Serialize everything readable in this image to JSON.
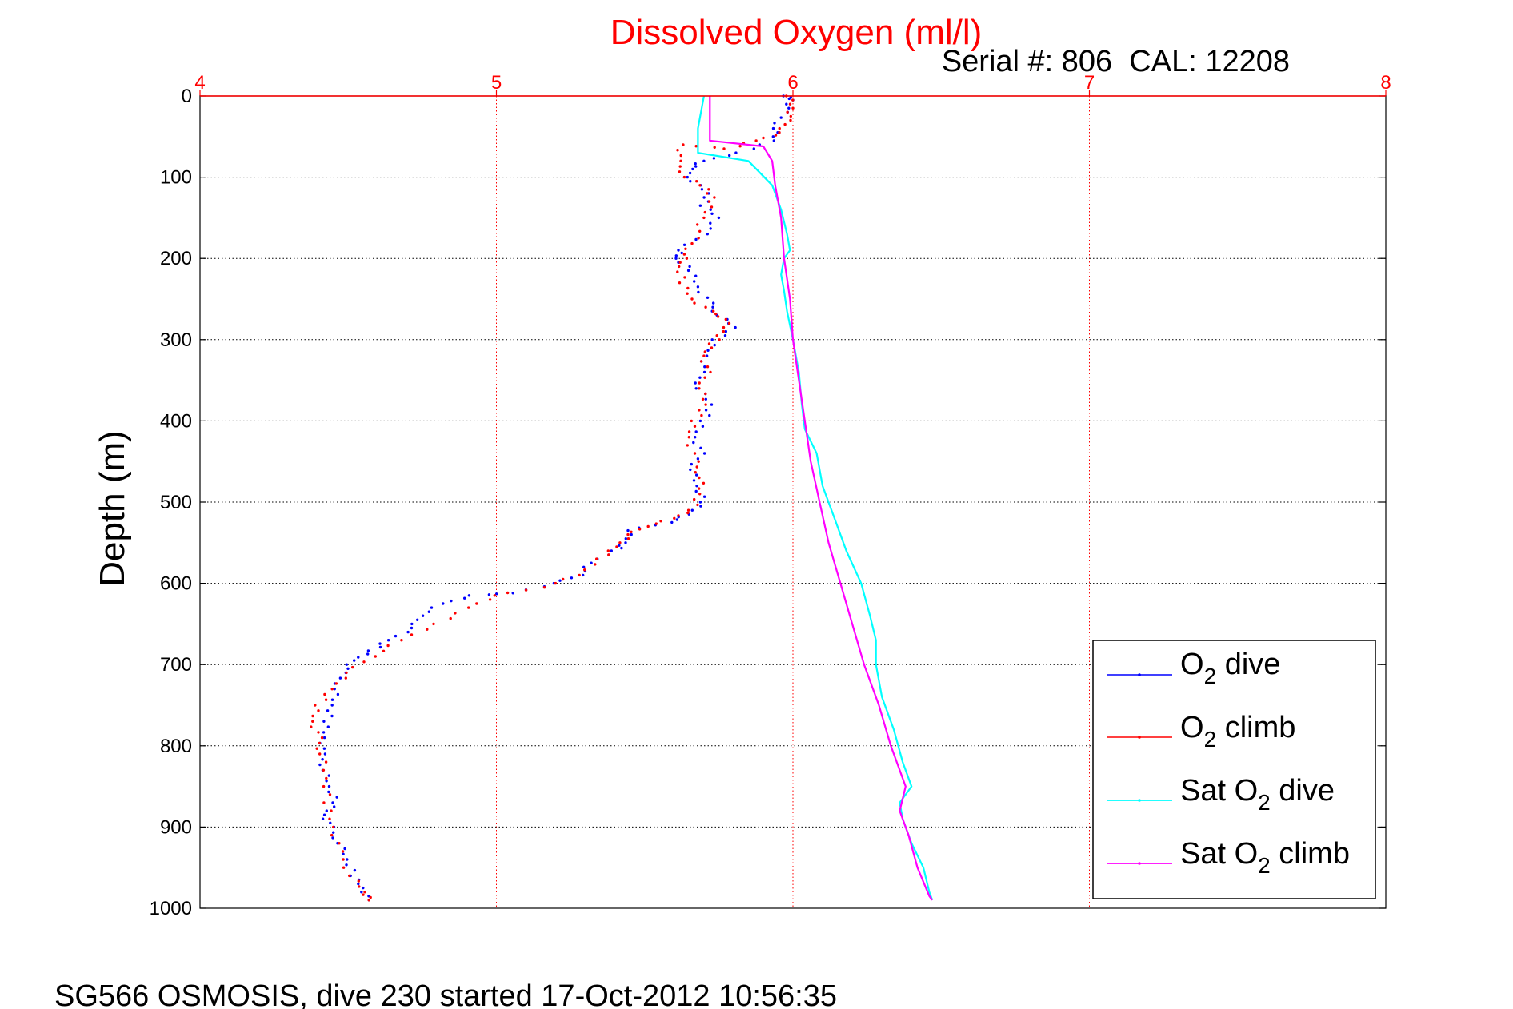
{
  "chart_data": {
    "type": "line",
    "title": "Dissolved Oxygen (ml/l)",
    "subtitle": "Serial #: 806  CAL: 12208",
    "ylabel": "Depth (m)",
    "xlabel": "",
    "xlim": [
      4,
      8
    ],
    "ylim": [
      0,
      1000
    ],
    "y_reversed": true,
    "x_axis_position": "top",
    "grid": true,
    "x_ticks": [
      "4",
      "5",
      "6",
      "7",
      "8"
    ],
    "y_ticks": [
      "0",
      "100",
      "200",
      "300",
      "400",
      "500",
      "600",
      "700",
      "800",
      "900",
      "1000"
    ],
    "legend_position": "bottom-right",
    "series": [
      {
        "name": "O2 dive",
        "style": "dots",
        "color": "#0000ff",
        "points": [
          [
            5.98,
            0
          ],
          [
            6.0,
            5
          ],
          [
            5.97,
            20
          ],
          [
            5.94,
            40
          ],
          [
            5.93,
            55
          ],
          [
            5.82,
            70
          ],
          [
            5.7,
            80
          ],
          [
            5.65,
            90
          ],
          [
            5.66,
            105
          ],
          [
            5.71,
            120
          ],
          [
            5.7,
            135
          ],
          [
            5.75,
            150
          ],
          [
            5.7,
            170
          ],
          [
            5.62,
            190
          ],
          [
            5.6,
            200
          ],
          [
            5.66,
            215
          ],
          [
            5.68,
            235
          ],
          [
            5.72,
            255
          ],
          [
            5.75,
            270
          ],
          [
            5.8,
            285
          ],
          [
            5.74,
            300
          ],
          [
            5.71,
            320
          ],
          [
            5.69,
            340
          ],
          [
            5.68,
            360
          ],
          [
            5.72,
            380
          ],
          [
            5.7,
            400
          ],
          [
            5.67,
            420
          ],
          [
            5.69,
            440
          ],
          [
            5.66,
            460
          ],
          [
            5.67,
            480
          ],
          [
            5.7,
            500
          ],
          [
            5.65,
            515
          ],
          [
            5.58,
            525
          ],
          [
            5.45,
            535
          ],
          [
            5.43,
            550
          ],
          [
            5.4,
            560
          ],
          [
            5.32,
            575
          ],
          [
            5.28,
            590
          ],
          [
            5.2,
            600
          ],
          [
            5.05,
            612
          ],
          [
            4.92,
            615
          ],
          [
            4.82,
            625
          ],
          [
            4.74,
            640
          ],
          [
            4.72,
            655
          ],
          [
            4.63,
            670
          ],
          [
            4.58,
            683
          ],
          [
            4.52,
            695
          ],
          [
            4.48,
            710
          ],
          [
            4.46,
            730
          ],
          [
            4.44,
            750
          ],
          [
            4.43,
            770
          ],
          [
            4.42,
            790
          ],
          [
            4.41,
            810
          ],
          [
            4.42,
            830
          ],
          [
            4.43,
            850
          ],
          [
            4.46,
            870
          ],
          [
            4.42,
            885
          ],
          [
            4.44,
            900
          ],
          [
            4.47,
            920
          ],
          [
            4.49,
            940
          ],
          [
            4.52,
            960
          ],
          [
            4.55,
            975
          ],
          [
            4.57,
            990
          ]
        ]
      },
      {
        "name": "O2 climb",
        "style": "dots",
        "color": "#ff0000",
        "points": [
          [
            5.99,
            0
          ],
          [
            6.0,
            15
          ],
          [
            5.98,
            30
          ],
          [
            5.96,
            45
          ],
          [
            5.87,
            55
          ],
          [
            5.78,
            65
          ],
          [
            5.63,
            60
          ],
          [
            5.61,
            80
          ],
          [
            5.64,
            100
          ],
          [
            5.71,
            115
          ],
          [
            5.73,
            130
          ],
          [
            5.7,
            150
          ],
          [
            5.67,
            175
          ],
          [
            5.64,
            195
          ],
          [
            5.61,
            210
          ],
          [
            5.63,
            230
          ],
          [
            5.66,
            250
          ],
          [
            5.72,
            265
          ],
          [
            5.78,
            275
          ],
          [
            5.76,
            290
          ],
          [
            5.73,
            305
          ],
          [
            5.7,
            320
          ],
          [
            5.71,
            340
          ],
          [
            5.69,
            360
          ],
          [
            5.7,
            380
          ],
          [
            5.67,
            400
          ],
          [
            5.65,
            420
          ],
          [
            5.67,
            450
          ],
          [
            5.69,
            470
          ],
          [
            5.68,
            490
          ],
          [
            5.66,
            510
          ],
          [
            5.6,
            520
          ],
          [
            5.5,
            530
          ],
          [
            5.45,
            540
          ],
          [
            5.4,
            555
          ],
          [
            5.35,
            570
          ],
          [
            5.28,
            590
          ],
          [
            5.15,
            605
          ],
          [
            5.0,
            615
          ],
          [
            4.9,
            630
          ],
          [
            4.8,
            650
          ],
          [
            4.68,
            670
          ],
          [
            4.58,
            690
          ],
          [
            4.5,
            710
          ],
          [
            4.44,
            730
          ],
          [
            4.4,
            750
          ],
          [
            4.38,
            770
          ],
          [
            4.4,
            790
          ],
          [
            4.41,
            810
          ],
          [
            4.42,
            840
          ],
          [
            4.43,
            870
          ],
          [
            4.45,
            900
          ],
          [
            4.47,
            930
          ],
          [
            4.51,
            960
          ],
          [
            4.55,
            980
          ],
          [
            4.57,
            990
          ]
        ]
      },
      {
        "name": "Sat O2 dive",
        "style": "line",
        "color": "#00ffff",
        "points": [
          [
            5.7,
            0
          ],
          [
            5.68,
            40
          ],
          [
            5.68,
            70
          ],
          [
            5.85,
            80
          ],
          [
            5.93,
            110
          ],
          [
            5.96,
            140
          ],
          [
            5.98,
            170
          ],
          [
            5.99,
            190
          ],
          [
            5.97,
            200
          ],
          [
            5.96,
            220
          ],
          [
            5.97,
            240
          ],
          [
            5.98,
            265
          ],
          [
            6.0,
            300
          ],
          [
            6.02,
            340
          ],
          [
            6.03,
            380
          ],
          [
            6.04,
            410
          ],
          [
            6.08,
            440
          ],
          [
            6.1,
            480
          ],
          [
            6.14,
            520
          ],
          [
            6.18,
            560
          ],
          [
            6.23,
            600
          ],
          [
            6.26,
            640
          ],
          [
            6.28,
            670
          ],
          [
            6.28,
            700
          ],
          [
            6.3,
            740
          ],
          [
            6.34,
            780
          ],
          [
            6.37,
            820
          ],
          [
            6.4,
            850
          ],
          [
            6.36,
            870
          ],
          [
            6.37,
            890
          ],
          [
            6.4,
            920
          ],
          [
            6.44,
            950
          ],
          [
            6.46,
            980
          ],
          [
            6.47,
            990
          ]
        ]
      },
      {
        "name": "Sat O2 climb",
        "style": "line",
        "color": "#ff00ff",
        "points": [
          [
            5.72,
            0
          ],
          [
            5.72,
            55
          ],
          [
            5.9,
            62
          ],
          [
            5.93,
            80
          ],
          [
            5.94,
            110
          ],
          [
            5.96,
            150
          ],
          [
            5.97,
            200
          ],
          [
            5.99,
            250
          ],
          [
            6.0,
            300
          ],
          [
            6.02,
            350
          ],
          [
            6.04,
            400
          ],
          [
            6.06,
            450
          ],
          [
            6.09,
            500
          ],
          [
            6.12,
            550
          ],
          [
            6.16,
            600
          ],
          [
            6.2,
            650
          ],
          [
            6.24,
            700
          ],
          [
            6.29,
            750
          ],
          [
            6.33,
            800
          ],
          [
            6.38,
            850
          ],
          [
            6.36,
            880
          ],
          [
            6.39,
            910
          ],
          [
            6.42,
            950
          ],
          [
            6.46,
            985
          ],
          [
            6.47,
            990
          ]
        ]
      }
    ]
  },
  "legend": {
    "items": [
      {
        "label": "O",
        "sub": "2",
        "rest": " dive"
      },
      {
        "label": "O",
        "sub": "2",
        "rest": " climb"
      },
      {
        "label": "Sat O",
        "sub": "2",
        "rest": " dive"
      },
      {
        "label": "Sat O",
        "sub": "2",
        "rest": " climb"
      }
    ]
  },
  "footer": {
    "caption": "SG566 OSMOSIS, dive 230 started 17-Oct-2012 10:56:35"
  }
}
